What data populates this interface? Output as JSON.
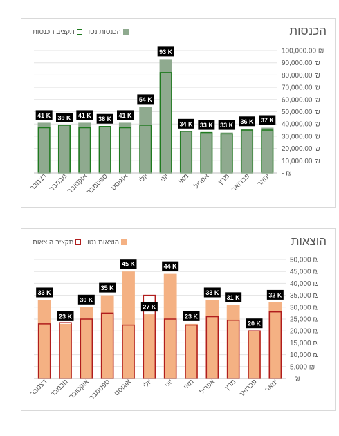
{
  "chart_data": [
    {
      "type": "bar",
      "title": "הכנסות",
      "categories": [
        "ינואר",
        "פברואר",
        "מרץ",
        "אפריל",
        "מאי",
        "יוני",
        "יולי",
        "אוגוסט",
        "ספטמבר",
        "אוקטובר",
        "נובמבר",
        "דצמבר"
      ],
      "series": [
        {
          "name": "הכנסות נטו",
          "values": [
            37000,
            36000,
            33000,
            33000,
            34000,
            93000,
            54000,
            41000,
            38000,
            41000,
            39000,
            41000
          ],
          "color": "#8faa8f"
        },
        {
          "name": "תקציב הכנסות",
          "values": [
            35000,
            35000,
            32000,
            33000,
            34000,
            82000,
            39000,
            37000,
            38000,
            37000,
            39000,
            37000
          ],
          "color": "#1f7a1f"
        }
      ],
      "data_labels": [
        "37 K",
        "36 K",
        "33 K",
        "33 K",
        "34 K",
        "93 K",
        "54 K",
        "41 K",
        "38 K",
        "41 K",
        "39 K",
        "41 K"
      ],
      "ylim": [
        0,
        100000
      ],
      "y_ticks": [
        "100,000.00 ₪",
        "90,000.00 ₪",
        "80,000.00 ₪",
        "70,000.00 ₪",
        "60,000.00 ₪",
        "50,000.00 ₪",
        "40,000.00 ₪",
        "30,000.00 ₪",
        "20,000.00 ₪",
        "10,000.00 ₪",
        "- ₪"
      ],
      "y_axis_side": "right",
      "x_axis_reversed": true,
      "legend_position": "top-left",
      "grid": true
    },
    {
      "type": "bar",
      "title": "הוצאות",
      "categories": [
        "ינואר",
        "פברואר",
        "מרץ",
        "אפריל",
        "מאי",
        "יוני",
        "יולי",
        "אוגוסט",
        "ספטמבר",
        "אוקטובר",
        "נובמבר",
        "דצמבר"
      ],
      "series": [
        {
          "name": "הוצאות נטו",
          "values": [
            32000,
            20000,
            31000,
            33000,
            23000,
            44000,
            27000,
            45000,
            35000,
            30000,
            23000,
            33000
          ],
          "color": "#f4b183"
        },
        {
          "name": "תקציב הוצאות",
          "values": [
            28000,
            20000,
            24500,
            26000,
            22500,
            25000,
            35000,
            22500,
            27500,
            25000,
            23500,
            23000
          ],
          "color": "#b01d1d"
        }
      ],
      "data_labels": [
        "32 K",
        "20 K",
        "31 K",
        "33 K",
        "23 K",
        "44 K",
        "27 K",
        "45 K",
        "35 K",
        "30 K",
        "23 K",
        "33 K"
      ],
      "ylim": [
        0,
        50000
      ],
      "y_ticks": [
        "50,000 ₪",
        "45,000 ₪",
        "40,000 ₪",
        "35,000 ₪",
        "30,000 ₪",
        "25,000 ₪",
        "20,000 ₪",
        "15,000 ₪",
        "10,000 ₪",
        "5,000 ₪",
        "- ₪"
      ],
      "y_axis_side": "right",
      "x_axis_reversed": true,
      "legend_position": "top-left",
      "grid": true
    }
  ]
}
